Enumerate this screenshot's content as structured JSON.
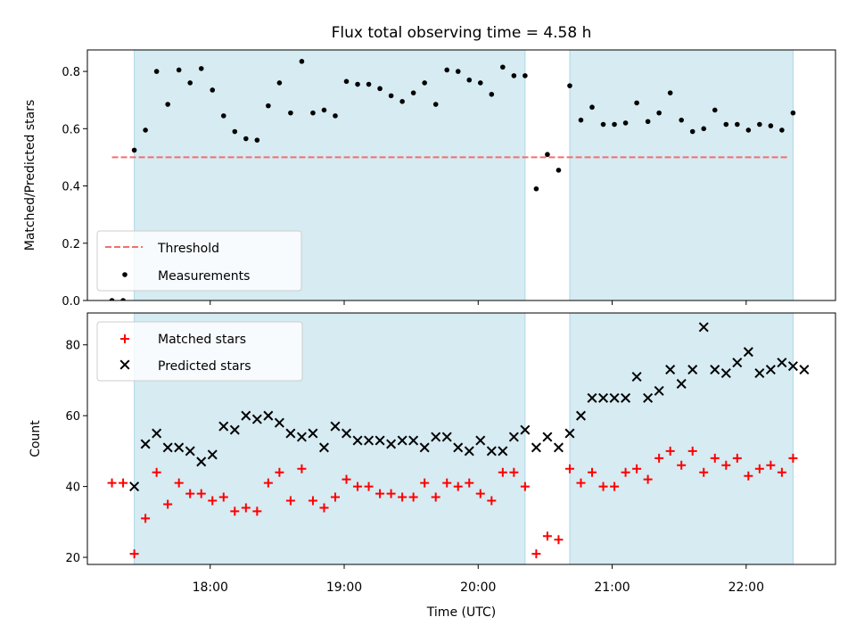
{
  "chart_data": [
    {
      "type": "scatter",
      "title": "Flux total observing time = 4.58 h",
      "ylabel": "Matched/Predicted stars",
      "ylim": [
        0,
        0.875
      ],
      "yticks": [
        0.0,
        0.2,
        0.4,
        0.6,
        0.8
      ],
      "ytick_labels": [
        "0.0",
        "0.2",
        "0.4",
        "0.6",
        "0.8"
      ],
      "xlim": [
        "17:05",
        "22:40"
      ],
      "grid": false,
      "legend_position": "lower-left",
      "shaded_intervals": [
        [
          "17:26",
          "20:21"
        ],
        [
          "20:41",
          "22:21"
        ]
      ],
      "threshold": {
        "label": "Threshold",
        "y": 0.5,
        "x": [
          "17:16",
          "22:19"
        ],
        "color": "#f07070"
      },
      "series": [
        {
          "name": "Measurements",
          "color": "#000000",
          "points": [
            [
              "17:16",
              0.0
            ],
            [
              "17:21",
              0.0
            ],
            [
              "17:26",
              0.525
            ],
            [
              "17:31",
              0.595
            ],
            [
              "17:36",
              0.8
            ],
            [
              "17:41",
              0.685
            ],
            [
              "17:46",
              0.805
            ],
            [
              "17:51",
              0.76
            ],
            [
              "17:56",
              0.81
            ],
            [
              "18:01",
              0.735
            ],
            [
              "18:06",
              0.645
            ],
            [
              "18:11",
              0.59
            ],
            [
              "18:16",
              0.565
            ],
            [
              "18:21",
              0.56
            ],
            [
              "18:26",
              0.68
            ],
            [
              "18:31",
              0.76
            ],
            [
              "18:36",
              0.655
            ],
            [
              "18:41",
              0.835
            ],
            [
              "18:46",
              0.655
            ],
            [
              "18:51",
              0.665
            ],
            [
              "18:56",
              0.645
            ],
            [
              "19:01",
              0.765
            ],
            [
              "19:06",
              0.755
            ],
            [
              "19:11",
              0.755
            ],
            [
              "19:16",
              0.74
            ],
            [
              "19:21",
              0.715
            ],
            [
              "19:26",
              0.695
            ],
            [
              "19:31",
              0.725
            ],
            [
              "19:36",
              0.76
            ],
            [
              "19:41",
              0.685
            ],
            [
              "19:46",
              0.805
            ],
            [
              "19:51",
              0.8
            ],
            [
              "19:56",
              0.77
            ],
            [
              "20:01",
              0.76
            ],
            [
              "20:06",
              0.72
            ],
            [
              "20:11",
              0.815
            ],
            [
              "20:16",
              0.785
            ],
            [
              "20:21",
              0.785
            ],
            [
              "20:26",
              0.39
            ],
            [
              "20:31",
              0.51
            ],
            [
              "20:36",
              0.455
            ],
            [
              "20:41",
              0.75
            ],
            [
              "20:46",
              0.63
            ],
            [
              "20:51",
              0.675
            ],
            [
              "20:56",
              0.615
            ],
            [
              "21:01",
              0.615
            ],
            [
              "21:06",
              0.62
            ],
            [
              "21:11",
              0.69
            ],
            [
              "21:16",
              0.625
            ],
            [
              "21:21",
              0.655
            ],
            [
              "21:26",
              0.725
            ],
            [
              "21:31",
              0.63
            ],
            [
              "21:36",
              0.59
            ],
            [
              "21:41",
              0.6
            ],
            [
              "21:46",
              0.665
            ],
            [
              "21:51",
              0.615
            ],
            [
              "21:56",
              0.615
            ],
            [
              "22:01",
              0.595
            ],
            [
              "22:06",
              0.615
            ],
            [
              "22:11",
              0.61
            ],
            [
              "22:16",
              0.595
            ],
            [
              "22:21",
              0.655
            ]
          ]
        }
      ]
    },
    {
      "type": "scatter",
      "ylabel": "Count",
      "xlabel": "Time (UTC)",
      "ylim": [
        18,
        89
      ],
      "yticks": [
        20,
        40,
        60,
        80
      ],
      "ytick_labels": [
        "20",
        "40",
        "60",
        "80"
      ],
      "xlim": [
        "17:05",
        "22:40"
      ],
      "xticks": [
        "18:00",
        "19:00",
        "20:00",
        "21:00",
        "22:00"
      ],
      "xtick_labels": [
        "18:00",
        "19:00",
        "20:00",
        "21:00",
        "22:00"
      ],
      "grid": false,
      "legend_position": "upper-left",
      "shaded_intervals": [
        [
          "17:26",
          "20:21"
        ],
        [
          "20:41",
          "22:21"
        ]
      ],
      "series": [
        {
          "name": "Matched stars",
          "marker": "+",
          "color": "#ff0000",
          "points": [
            [
              "17:16",
              41
            ],
            [
              "17:21",
              41
            ],
            [
              "17:26",
              21
            ],
            [
              "17:31",
              31
            ],
            [
              "17:36",
              44
            ],
            [
              "17:41",
              35
            ],
            [
              "17:46",
              41
            ],
            [
              "17:51",
              38
            ],
            [
              "17:56",
              38
            ],
            [
              "18:01",
              36
            ],
            [
              "18:06",
              37
            ],
            [
              "18:11",
              33
            ],
            [
              "18:16",
              34
            ],
            [
              "18:21",
              33
            ],
            [
              "18:26",
              41
            ],
            [
              "18:31",
              44
            ],
            [
              "18:36",
              36
            ],
            [
              "18:41",
              45
            ],
            [
              "18:46",
              36
            ],
            [
              "18:51",
              34
            ],
            [
              "18:56",
              37
            ],
            [
              "19:01",
              42
            ],
            [
              "19:06",
              40
            ],
            [
              "19:11",
              40
            ],
            [
              "19:16",
              38
            ],
            [
              "19:21",
              38
            ],
            [
              "19:26",
              37
            ],
            [
              "19:31",
              37
            ],
            [
              "19:36",
              41
            ],
            [
              "19:41",
              37
            ],
            [
              "19:46",
              41
            ],
            [
              "19:51",
              40
            ],
            [
              "19:56",
              41
            ],
            [
              "20:01",
              38
            ],
            [
              "20:06",
              36
            ],
            [
              "20:11",
              44
            ],
            [
              "20:16",
              44
            ],
            [
              "20:21",
              40
            ],
            [
              "20:26",
              21
            ],
            [
              "20:31",
              26
            ],
            [
              "20:36",
              25
            ],
            [
              "20:41",
              45
            ],
            [
              "20:46",
              41
            ],
            [
              "20:51",
              44
            ],
            [
              "20:56",
              40
            ],
            [
              "21:01",
              40
            ],
            [
              "21:06",
              44
            ],
            [
              "21:11",
              45
            ],
            [
              "21:16",
              42
            ],
            [
              "21:21",
              48
            ],
            [
              "21:26",
              50
            ],
            [
              "21:31",
              46
            ],
            [
              "21:36",
              50
            ],
            [
              "21:41",
              44
            ],
            [
              "21:46",
              48
            ],
            [
              "21:51",
              46
            ],
            [
              "21:56",
              48
            ],
            [
              "22:01",
              43
            ],
            [
              "22:06",
              45
            ],
            [
              "22:11",
              46
            ],
            [
              "22:16",
              44
            ],
            [
              "22:21",
              48
            ]
          ]
        },
        {
          "name": "Predicted stars",
          "marker": "x",
          "color": "#000000",
          "points": [
            [
              "17:26",
              40
            ],
            [
              "17:31",
              52
            ],
            [
              "17:36",
              55
            ],
            [
              "17:41",
              51
            ],
            [
              "17:46",
              51
            ],
            [
              "17:51",
              50
            ],
            [
              "17:56",
              47
            ],
            [
              "18:01",
              49
            ],
            [
              "18:06",
              57
            ],
            [
              "18:11",
              56
            ],
            [
              "18:16",
              60
            ],
            [
              "18:21",
              59
            ],
            [
              "18:26",
              60
            ],
            [
              "18:31",
              58
            ],
            [
              "18:36",
              55
            ],
            [
              "18:41",
              54
            ],
            [
              "18:46",
              55
            ],
            [
              "18:51",
              51
            ],
            [
              "18:56",
              57
            ],
            [
              "19:01",
              55
            ],
            [
              "19:06",
              53
            ],
            [
              "19:11",
              53
            ],
            [
              "19:16",
              53
            ],
            [
              "19:21",
              52
            ],
            [
              "19:26",
              53
            ],
            [
              "19:31",
              53
            ],
            [
              "19:36",
              51
            ],
            [
              "19:41",
              54
            ],
            [
              "19:46",
              54
            ],
            [
              "19:51",
              51
            ],
            [
              "19:56",
              50
            ],
            [
              "20:01",
              53
            ],
            [
              "20:06",
              50
            ],
            [
              "20:11",
              50
            ],
            [
              "20:16",
              54
            ],
            [
              "20:21",
              56
            ],
            [
              "20:26",
              51
            ],
            [
              "20:31",
              54
            ],
            [
              "20:36",
              51
            ],
            [
              "20:41",
              55
            ],
            [
              "20:46",
              60
            ],
            [
              "20:51",
              65
            ],
            [
              "20:56",
              65
            ],
            [
              "21:01",
              65
            ],
            [
              "21:06",
              65
            ],
            [
              "21:11",
              71
            ],
            [
              "21:16",
              65
            ],
            [
              "21:21",
              67
            ],
            [
              "21:26",
              73
            ],
            [
              "21:31",
              69
            ],
            [
              "21:36",
              73
            ],
            [
              "21:41",
              85
            ],
            [
              "21:46",
              73
            ],
            [
              "21:51",
              72
            ],
            [
              "21:56",
              75
            ],
            [
              "22:01",
              78
            ],
            [
              "22:06",
              72
            ],
            [
              "22:11",
              73
            ],
            [
              "22:16",
              75
            ],
            [
              "22:21",
              74
            ],
            [
              "22:26",
              73
            ]
          ]
        }
      ]
    }
  ]
}
